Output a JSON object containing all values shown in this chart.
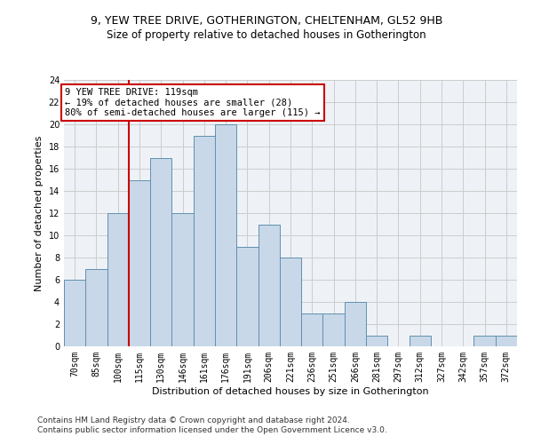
{
  "title1": "9, YEW TREE DRIVE, GOTHERINGTON, CHELTENHAM, GL52 9HB",
  "title2": "Size of property relative to detached houses in Gotherington",
  "xlabel": "Distribution of detached houses by size in Gotherington",
  "ylabel": "Number of detached properties",
  "footnote1": "Contains HM Land Registry data © Crown copyright and database right 2024.",
  "footnote2": "Contains public sector information licensed under the Open Government Licence v3.0.",
  "bin_labels": [
    "70sqm",
    "85sqm",
    "100sqm",
    "115sqm",
    "130sqm",
    "146sqm",
    "161sqm",
    "176sqm",
    "191sqm",
    "206sqm",
    "221sqm",
    "236sqm",
    "251sqm",
    "266sqm",
    "281sqm",
    "297sqm",
    "312sqm",
    "327sqm",
    "342sqm",
    "357sqm",
    "372sqm"
  ],
  "bar_values": [
    6,
    7,
    12,
    15,
    17,
    12,
    19,
    20,
    9,
    11,
    8,
    3,
    3,
    4,
    1,
    0,
    1,
    0,
    0,
    1,
    1
  ],
  "bar_color": "#c8d8e8",
  "bar_edge_color": "#6090b0",
  "vline_idx": 3,
  "vline_color": "#cc0000",
  "annotation_text": "9 YEW TREE DRIVE: 119sqm\n← 19% of detached houses are smaller (28)\n80% of semi-detached houses are larger (115) →",
  "annotation_box_color": "white",
  "annotation_box_edge": "#cc0000",
  "ylim": [
    0,
    24
  ],
  "yticks": [
    0,
    2,
    4,
    6,
    8,
    10,
    12,
    14,
    16,
    18,
    20,
    22,
    24
  ],
  "grid_color": "#cccccc",
  "bg_color": "#eef2f7",
  "title1_fontsize": 9,
  "title2_fontsize": 8.5,
  "axis_label_fontsize": 8,
  "tick_fontsize": 7,
  "footnote_fontsize": 6.5,
  "annotation_fontsize": 7.5
}
